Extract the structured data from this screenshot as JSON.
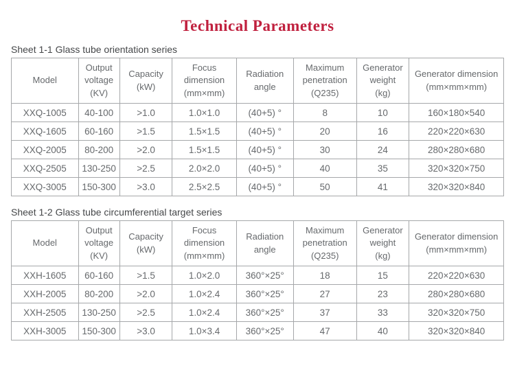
{
  "page": {
    "title": "Technical Parameters"
  },
  "colors": {
    "title": "#c0203e",
    "text": "#66696c",
    "caption": "#454749",
    "border": "#a5a7a9"
  },
  "tables": [
    {
      "caption": "Sheet 1-1 Glass tube orientation series",
      "headers": [
        "Model",
        "Output\nvoltage\n(KV)",
        "Capacity\n(kW)",
        "Focus\ndimension\n(mm×mm)",
        "Radiation\nangle",
        "Maximum\npenetration\n(Q235)",
        "Generator\nweight\n(kg)",
        "Generator dimension\n(mm×mm×mm)"
      ],
      "rows": [
        [
          "XXQ-1005",
          "40-100",
          ">1.0",
          "1.0×1.0",
          "(40+5) °",
          "8",
          "10",
          "160×180×540"
        ],
        [
          "XXQ-1605",
          "60-160",
          ">1.5",
          "1.5×1.5",
          "(40+5) °",
          "20",
          "16",
          "220×220×630"
        ],
        [
          "XXQ-2005",
          "80-200",
          ">2.0",
          "1.5×1.5",
          "(40+5) °",
          "30",
          "24",
          "280×280×680"
        ],
        [
          "XXQ-2505",
          "130-250",
          ">2.5",
          "2.0×2.0",
          "(40+5) °",
          "40",
          "35",
          "320×320×750"
        ],
        [
          "XXQ-3005",
          "150-300",
          ">3.0",
          "2.5×2.5",
          "(40+5) °",
          "50",
          "41",
          "320×320×840"
        ]
      ]
    },
    {
      "caption": "Sheet 1-2 Glass tube circumferential target series",
      "headers": [
        "Model",
        "Output\nvoltage\n(KV)",
        "Capacity\n(kW)",
        "Focus\ndimension\n(mm×mm)",
        "Radiation\nangle",
        "Maximum\npenetration\n(Q235)",
        "Generator\nweight\n(kg)",
        "Generator dimension\n(mm×mm×mm)"
      ],
      "rows": [
        [
          "XXH-1605",
          "60-160",
          ">1.5",
          "1.0×2.0",
          "360°×25°",
          "18",
          "15",
          "220×220×630"
        ],
        [
          "XXH-2005",
          "80-200",
          ">2.0",
          "1.0×2.4",
          "360°×25°",
          "27",
          "23",
          "280×280×680"
        ],
        [
          "XXH-2505",
          "130-250",
          ">2.5",
          "1.0×2.4",
          "360°×25°",
          "37",
          "33",
          "320×320×750"
        ],
        [
          "XXH-3005",
          "150-300",
          ">3.0",
          "1.0×3.4",
          "360°×25°",
          "47",
          "40",
          "320×320×840"
        ]
      ]
    }
  ]
}
